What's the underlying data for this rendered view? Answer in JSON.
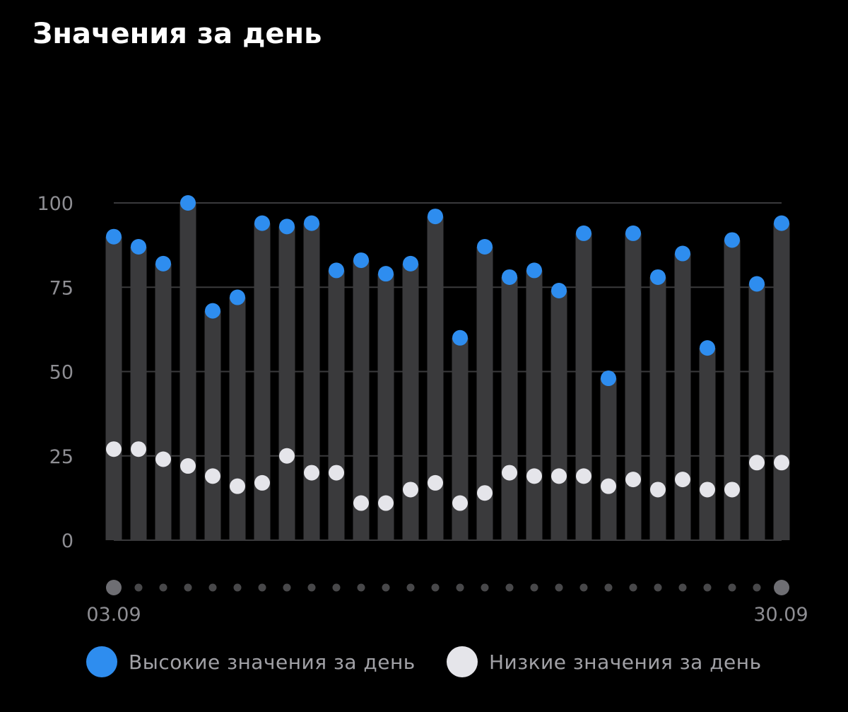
{
  "colors": {
    "background": "#000000",
    "high": "#2e8def",
    "low": "#e5e5ea",
    "bar": "#3a3a3c",
    "grid": "#3a3a3c",
    "text": "#8e8e93"
  },
  "chart_data": {
    "type": "range-bar",
    "title": "Значения за день",
    "ylim": [
      0,
      100
    ],
    "y_ticks": [
      "0",
      "25",
      "50",
      "75",
      "100"
    ],
    "x_start_label": "03.09",
    "x_end_label": "30.09",
    "grid": true,
    "legend_position": "bottom",
    "series": [
      {
        "name": "Высокие значения за день",
        "color": "#2e8def",
        "values": [
          90,
          87,
          82,
          100,
          68,
          72,
          94,
          93,
          94,
          80,
          83,
          79,
          82,
          96,
          60,
          87,
          78,
          80,
          74,
          91,
          48,
          91,
          78,
          85,
          57,
          89,
          76,
          94
        ]
      },
      {
        "name": "Низкие значения за день",
        "color": "#e5e5ea",
        "values": [
          27,
          27,
          24,
          22,
          19,
          16,
          17,
          25,
          20,
          20,
          11,
          11,
          15,
          17,
          11,
          14,
          20,
          19,
          19,
          19,
          16,
          18,
          15,
          18,
          15,
          15,
          23,
          23
        ]
      }
    ]
  }
}
